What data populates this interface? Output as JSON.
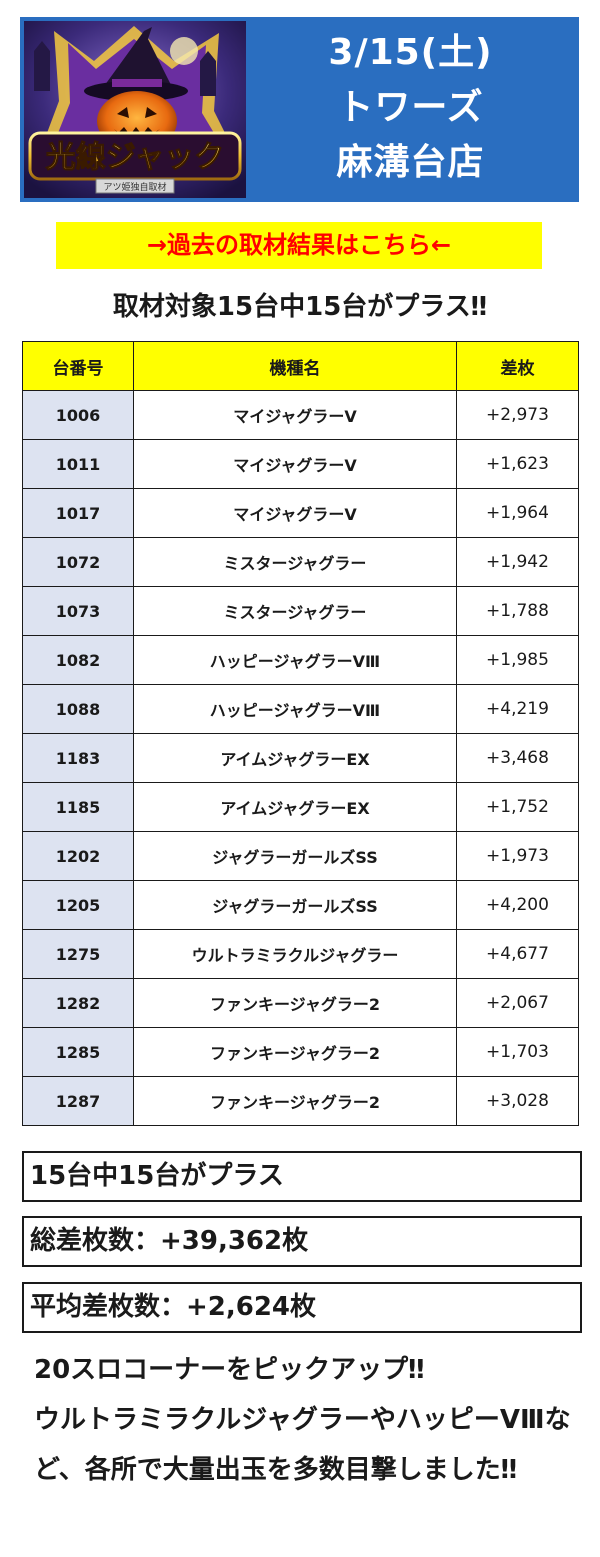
{
  "header": {
    "logo_text": "光線ジャック",
    "logo_subtext": "アツ姫独自取材",
    "date": "3/15(土)",
    "store_line1": "トワーズ",
    "store_line2": "麻溝台店"
  },
  "past_results_link": "→過去の取材結果はこちら←",
  "headline": "取材対象15台中15台がプラス‼",
  "table": {
    "headers": [
      "台番号",
      "機種名",
      "差枚"
    ],
    "rows": [
      {
        "no": "1006",
        "model": "マイジャグラーV",
        "diff": "+2,973"
      },
      {
        "no": "1011",
        "model": "マイジャグラーV",
        "diff": "+1,623"
      },
      {
        "no": "1017",
        "model": "マイジャグラーV",
        "diff": "+1,964"
      },
      {
        "no": "1072",
        "model": "ミスタージャグラー",
        "diff": "+1,942"
      },
      {
        "no": "1073",
        "model": "ミスタージャグラー",
        "diff": "+1,788"
      },
      {
        "no": "1082",
        "model": "ハッピージャグラーVⅢ",
        "diff": "+1,985"
      },
      {
        "no": "1088",
        "model": "ハッピージャグラーVⅢ",
        "diff": "+4,219"
      },
      {
        "no": "1183",
        "model": "アイムジャグラーEX",
        "diff": "+3,468"
      },
      {
        "no": "1185",
        "model": "アイムジャグラーEX",
        "diff": "+1,752"
      },
      {
        "no": "1202",
        "model": "ジャグラーガールズSS",
        "diff": "+1,973"
      },
      {
        "no": "1205",
        "model": "ジャグラーガールズSS",
        "diff": "+4,200"
      },
      {
        "no": "1275",
        "model": "ウルトラミラクルジャグラー",
        "diff": "+4,677"
      },
      {
        "no": "1282",
        "model": "ファンキージャグラー2",
        "diff": "+2,067"
      },
      {
        "no": "1285",
        "model": "ファンキージャグラー2",
        "diff": "+1,703"
      },
      {
        "no": "1287",
        "model": "ファンキージャグラー2",
        "diff": "+3,028"
      }
    ]
  },
  "summary": {
    "plus_count": "15台中15台がプラス",
    "total_diff": "総差枚数：+39,362枚",
    "average_diff": "平均差枚数：+2,624枚"
  },
  "comment": "20スロコーナーをピックアップ‼\nウルトラミラクルジャグラーやハッピーVⅢなど、各所で大量出玉を多数目撃しました‼",
  "colors": {
    "header_bg": "#2a6ec0",
    "link_bg": "#ffff00",
    "link_text": "#ff0000",
    "table_header_bg": "#ffff00",
    "number_cell_bg": "#dde3f1"
  }
}
